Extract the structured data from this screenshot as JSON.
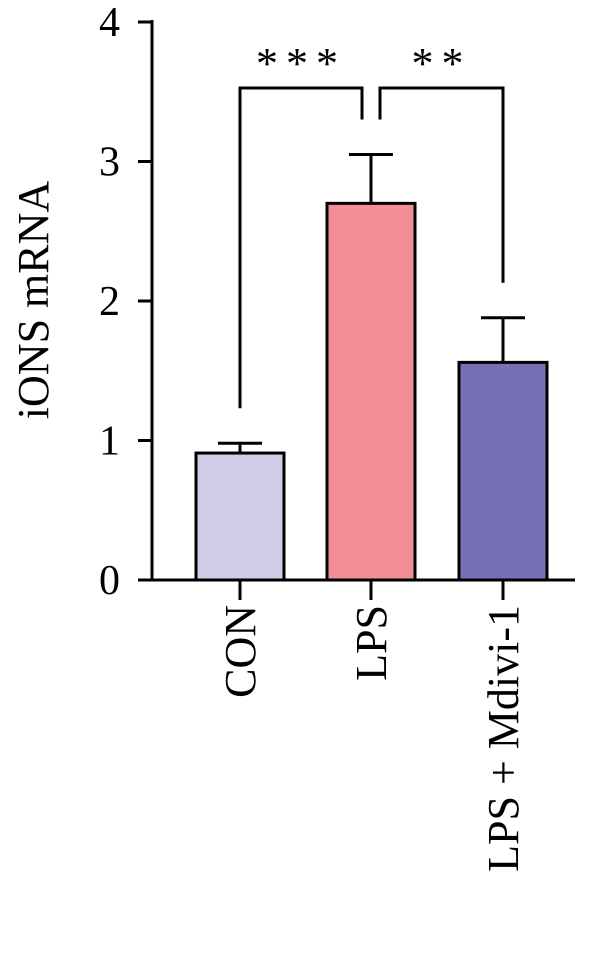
{
  "chart_data": {
    "type": "bar",
    "y_label": "iONS mRNA",
    "categories": [
      "CON",
      "LPS",
      "LPS + Mdivi-1"
    ],
    "values": [
      0.91,
      2.7,
      1.56
    ],
    "errors": [
      0.07,
      0.35,
      0.32
    ],
    "colors": [
      "#cfcde6",
      "#f28e96",
      "#7670b4"
    ],
    "ylim": [
      0,
      4
    ],
    "yticks": [
      0,
      1,
      2,
      3,
      4
    ],
    "significance": [
      "***",
      "**"
    ]
  }
}
